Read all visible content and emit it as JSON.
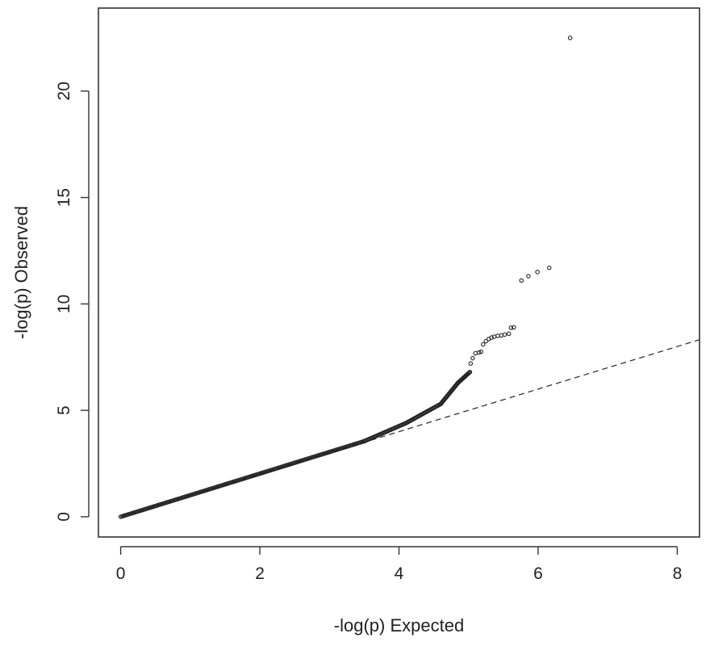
{
  "chart_data": {
    "type": "scatter",
    "title": "",
    "xlabel": "-log(p) Expected",
    "ylabel": "-log(p) Observed",
    "xlim": [
      -0.32,
      8.32
    ],
    "ylim": [
      -0.95,
      23.9
    ],
    "x_ticks": [
      0,
      2,
      4,
      6,
      8
    ],
    "y_ticks": [
      0,
      5,
      10,
      15,
      20
    ],
    "grid": false,
    "legend": "none",
    "colors": {
      "points": "#222222",
      "reference_line": "#333333",
      "axes": "#333333"
    },
    "reference_line": {
      "style": "dashed",
      "points": [
        [
          0,
          0
        ],
        [
          8.32,
          8.32
        ]
      ]
    },
    "dense_segments": [
      {
        "x0": 0.0,
        "y0": 0.0,
        "x1": 3.5,
        "y1": 3.55,
        "n": 180
      },
      {
        "x0": 3.5,
        "y0": 3.55,
        "x1": 4.1,
        "y1": 4.4,
        "n": 40
      },
      {
        "x0": 4.1,
        "y0": 4.4,
        "x1": 4.6,
        "y1": 5.3,
        "n": 35
      },
      {
        "x0": 4.6,
        "y0": 5.3,
        "x1": 4.85,
        "y1": 6.3,
        "n": 25
      },
      {
        "x0": 4.85,
        "y0": 6.3,
        "x1": 5.02,
        "y1": 6.8,
        "n": 15
      }
    ],
    "points": [
      {
        "x": 5.03,
        "y": 7.2
      },
      {
        "x": 5.06,
        "y": 7.45
      },
      {
        "x": 5.1,
        "y": 7.68
      },
      {
        "x": 5.15,
        "y": 7.72
      },
      {
        "x": 5.18,
        "y": 7.75
      },
      {
        "x": 5.21,
        "y": 8.1
      },
      {
        "x": 5.25,
        "y": 8.25
      },
      {
        "x": 5.29,
        "y": 8.35
      },
      {
        "x": 5.33,
        "y": 8.42
      },
      {
        "x": 5.37,
        "y": 8.46
      },
      {
        "x": 5.42,
        "y": 8.5
      },
      {
        "x": 5.47,
        "y": 8.52
      },
      {
        "x": 5.52,
        "y": 8.56
      },
      {
        "x": 5.58,
        "y": 8.6
      },
      {
        "x": 5.61,
        "y": 8.88
      },
      {
        "x": 5.65,
        "y": 8.9
      },
      {
        "x": 5.76,
        "y": 11.1
      },
      {
        "x": 5.86,
        "y": 11.3
      },
      {
        "x": 5.99,
        "y": 11.5
      },
      {
        "x": 6.16,
        "y": 11.7
      },
      {
        "x": 6.46,
        "y": 22.5
      }
    ]
  }
}
